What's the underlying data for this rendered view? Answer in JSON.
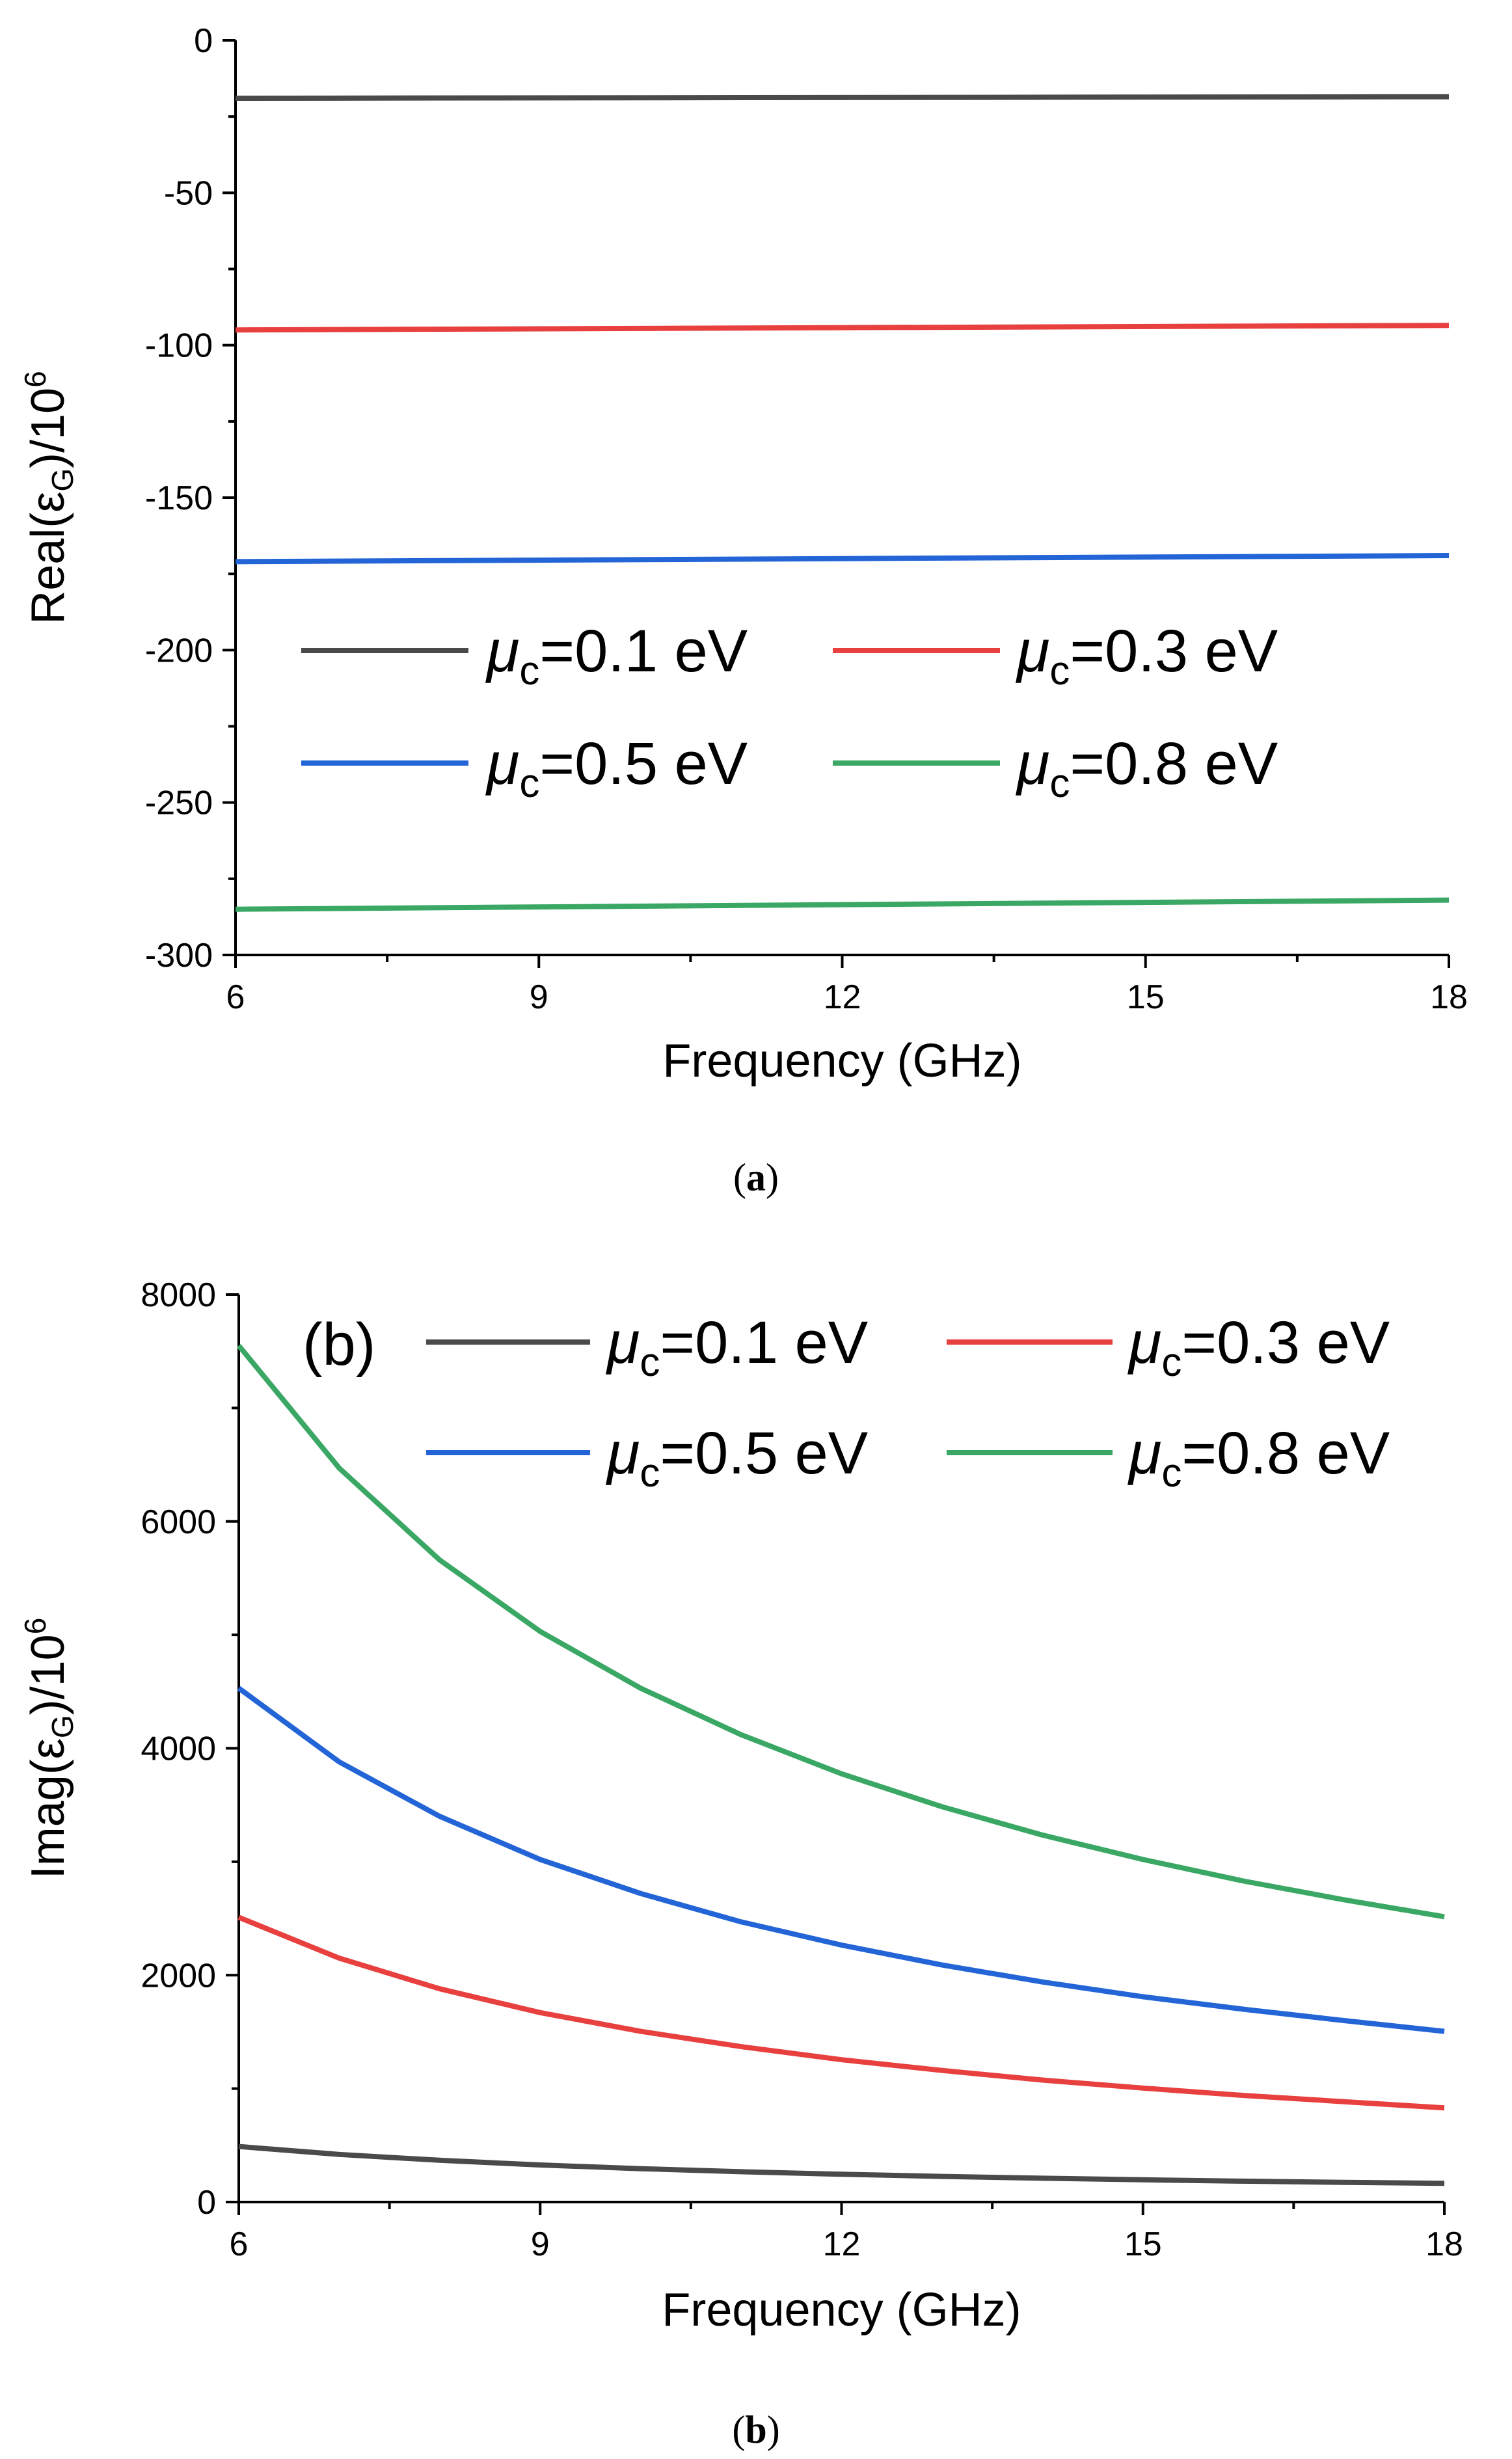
{
  "chart_data": [
    {
      "type": "line",
      "panel_caption": "a",
      "panel_label": "",
      "title": "",
      "xlabel": "Frequency (GHz)",
      "ylabel": {
        "text": "Real(ε",
        "sub": "G",
        "tail": ")/10",
        "sup": "6"
      },
      "xlim": [
        6,
        18
      ],
      "ylim": [
        -300,
        0
      ],
      "xticks": [
        6,
        9,
        12,
        15,
        18
      ],
      "yticks": [
        0,
        -50,
        -100,
        -150,
        -200,
        -250,
        -300
      ],
      "x": [
        6,
        18
      ],
      "legend_position": "center",
      "series": [
        {
          "name": "μc=0.1 eV",
          "sym": "μ",
          "sub": "c",
          "rest": "=0.1 eV",
          "color": "#4a4a4a",
          "values": [
            -19,
            -18.5
          ]
        },
        {
          "name": "μc=0.3 eV",
          "sym": "μ",
          "sub": "c",
          "rest": "=0.3 eV",
          "color": "#e8403f",
          "values": [
            -95,
            -93.5
          ]
        },
        {
          "name": "μc=0.5 eV",
          "sym": "μ",
          "sub": "c",
          "rest": "=0.5 eV",
          "color": "#2365d6",
          "values": [
            -171,
            -169
          ]
        },
        {
          "name": "μc=0.8 eV",
          "sym": "μ",
          "sub": "c",
          "rest": "=0.8 eV",
          "color": "#3aa864",
          "values": [
            -285,
            -282
          ]
        }
      ]
    },
    {
      "type": "line",
      "panel_caption": "b",
      "panel_label": "(b)",
      "title": "",
      "xlabel": "Frequency (GHz)",
      "ylabel": {
        "text": "Imag(ε",
        "sub": "G",
        "tail": ")/10",
        "sup": "6"
      },
      "xlim": [
        6,
        18
      ],
      "ylim": [
        0,
        8000
      ],
      "xticks": [
        6,
        9,
        12,
        15,
        18
      ],
      "yticks": [
        0,
        2000,
        4000,
        6000,
        8000
      ],
      "x": [
        6,
        7,
        8,
        9,
        10,
        11,
        12,
        13,
        14,
        15,
        16,
        17,
        18
      ],
      "legend_position": "top",
      "series": [
        {
          "name": "μc=0.1 eV",
          "sym": "μ",
          "sub": "c",
          "rest": "=0.1 eV",
          "color": "#4a4a4a",
          "values": [
            490,
            420,
            368,
            327,
            294,
            267,
            245,
            226,
            210,
            196,
            184,
            173,
            165
          ]
        },
        {
          "name": "μc=0.3 eV",
          "sym": "μ",
          "sub": "c",
          "rest": "=0.3 eV",
          "color": "#e8403f",
          "values": [
            2510,
            2150,
            1880,
            1670,
            1505,
            1370,
            1255,
            1160,
            1075,
            1005,
            940,
            885,
            830
          ]
        },
        {
          "name": "μc=0.5 eV",
          "sym": "μ",
          "sub": "c",
          "rest": "=0.5 eV",
          "color": "#2365d6",
          "values": [
            4530,
            3880,
            3400,
            3020,
            2720,
            2470,
            2265,
            2090,
            1940,
            1810,
            1700,
            1600,
            1505
          ]
        },
        {
          "name": "μc=0.8 eV",
          "sym": "μ",
          "sub": "c",
          "rest": "=0.8 eV",
          "color": "#3aa864",
          "values": [
            7550,
            6470,
            5660,
            5030,
            4530,
            4120,
            3775,
            3485,
            3235,
            3020,
            2830,
            2665,
            2515
          ]
        }
      ]
    }
  ],
  "colors": {
    "axis": "#000000",
    "background": "#ffffff"
  }
}
